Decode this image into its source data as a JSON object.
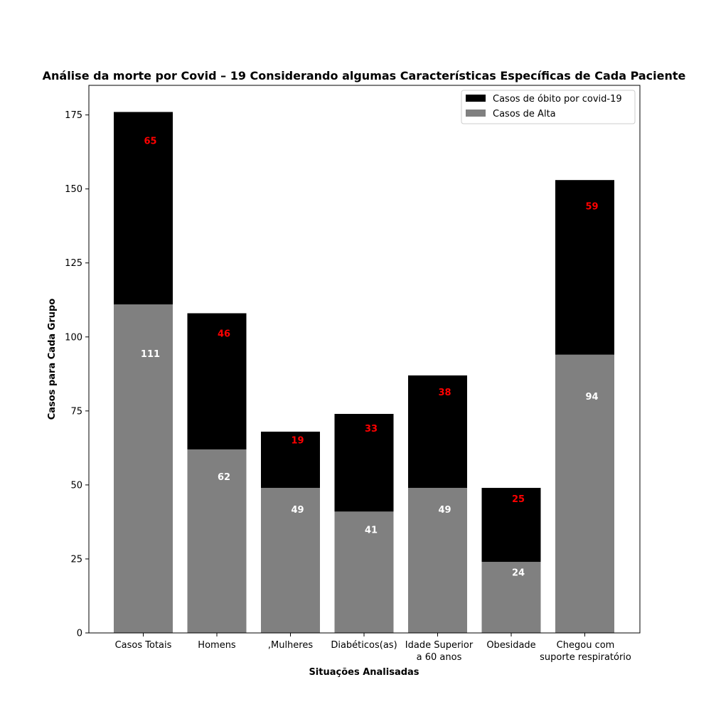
{
  "chart_data": {
    "type": "bar",
    "stacked": true,
    "title": "Análise da morte por Covid – 19 Considerando algumas Características Específicas de Cada Paciente",
    "xlabel": "Situações Analisadas",
    "ylabel": "Casos para Cada Grupo",
    "ylim": [
      0,
      185
    ],
    "yticks": [
      0,
      25,
      50,
      75,
      100,
      125,
      150,
      175
    ],
    "categories": [
      [
        "Casos Totais"
      ],
      [
        "Homens"
      ],
      [
        ",Mulheres"
      ],
      [
        "Diabéticos(as)"
      ],
      [
        "Idade Superior",
        "a 60 anos"
      ],
      [
        "Obesidade"
      ],
      [
        "Chegou com",
        "suporte respiratório"
      ]
    ],
    "series": [
      {
        "name": "Casos de Alta",
        "values": [
          111,
          62,
          49,
          41,
          49,
          24,
          94
        ],
        "color": "#808080",
        "label_color": "#ffffff"
      },
      {
        "name": "Casos de óbito por covid-19",
        "values": [
          65,
          46,
          19,
          33,
          38,
          25,
          59
        ],
        "color": "#000000",
        "label_color": "#ff0000"
      }
    ],
    "legend_order": [
      1,
      0
    ],
    "legend_position": "top-right",
    "grid": false
  }
}
